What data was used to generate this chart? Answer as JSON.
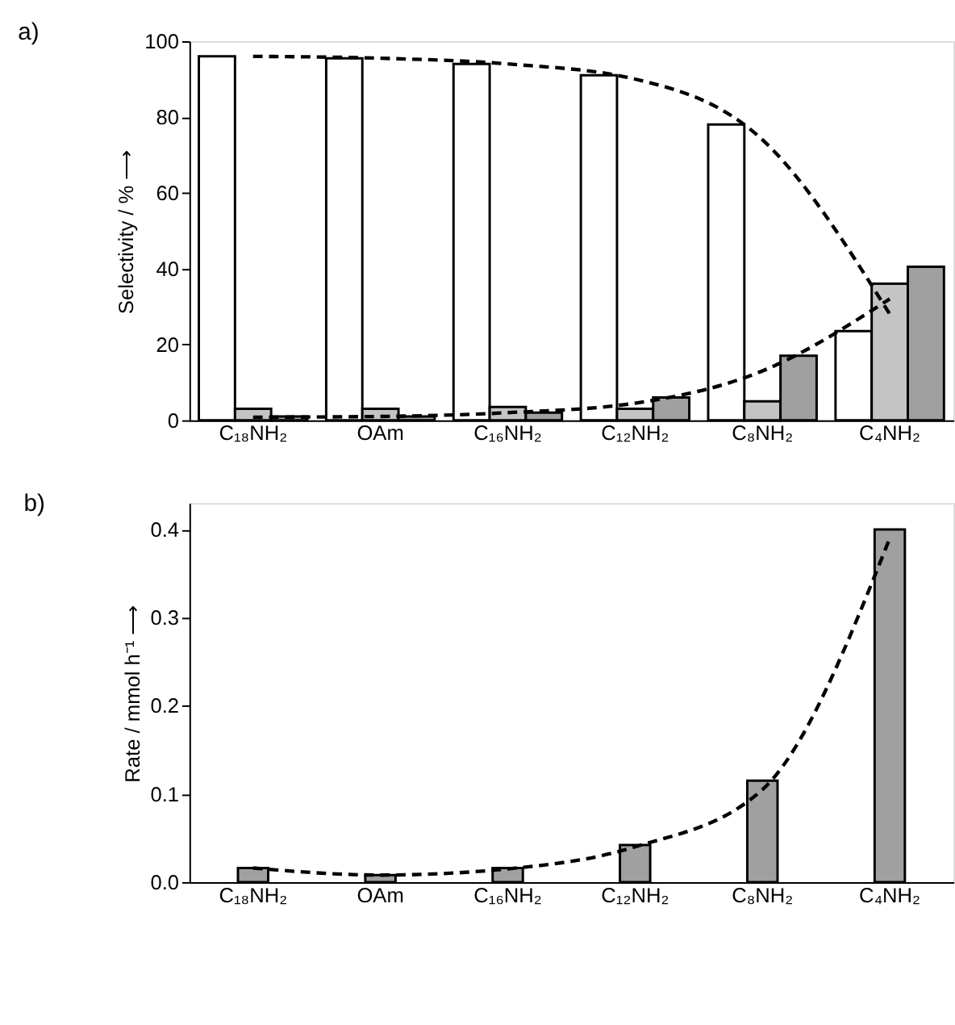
{
  "chart_data": [
    {
      "type": "bar",
      "title": "a)",
      "ylabel": "Selectivity / % ⟶",
      "categories": [
        "C₁₈NH₂",
        "OAm",
        "C₁₆NH₂",
        "C₁₂NH₂",
        "C₈NH₂",
        "C₄NH₂"
      ],
      "series": [
        {
          "color": "#ffffff",
          "values": [
            96,
            95.5,
            94,
            91,
            78,
            23.5
          ]
        },
        {
          "color": "#c4c4c4",
          "values": [
            3,
            3,
            3.5,
            3,
            5,
            36
          ]
        },
        {
          "color": "#a0a0a0",
          "values": [
            1,
            1,
            2,
            6,
            17,
            40.5
          ]
        },
        {
          "type": "line",
          "line_style": "dashed",
          "color": "#000000",
          "values": [
            96,
            95.5,
            94,
            90,
            74,
            28
          ]
        },
        {
          "type": "line",
          "line_style": "dashed",
          "color": "#000000",
          "values": [
            0.8,
            1,
            2,
            4.5,
            13,
            32
          ]
        }
      ],
      "ylim": [
        0,
        100
      ],
      "yticks": [
        0,
        20,
        40,
        60,
        80,
        100
      ],
      "grid": false,
      "legend": false
    },
    {
      "type": "bar",
      "title": "b)",
      "ylabel": "Rate / mmol h⁻¹ ⟶",
      "categories": [
        "C₁₈NH₂",
        "OAm",
        "C₁₆NH₂",
        "C₁₂NH₂",
        "C₈NH₂",
        "C₄NH₂"
      ],
      "series": [
        {
          "color": "#a0a0a0",
          "values": [
            0.016,
            0.008,
            0.016,
            0.042,
            0.115,
            0.4
          ]
        },
        {
          "type": "line",
          "line_style": "dashed",
          "color": "#000000",
          "values": [
            0.016,
            0.008,
            0.015,
            0.04,
            0.105,
            0.39
          ]
        }
      ],
      "ylim": [
        0,
        0.43
      ],
      "yticks": [
        {
          "value": 0,
          "label": "0.0"
        },
        0.1,
        0.2,
        0.3,
        0.4
      ],
      "grid": false,
      "legend": false
    }
  ]
}
